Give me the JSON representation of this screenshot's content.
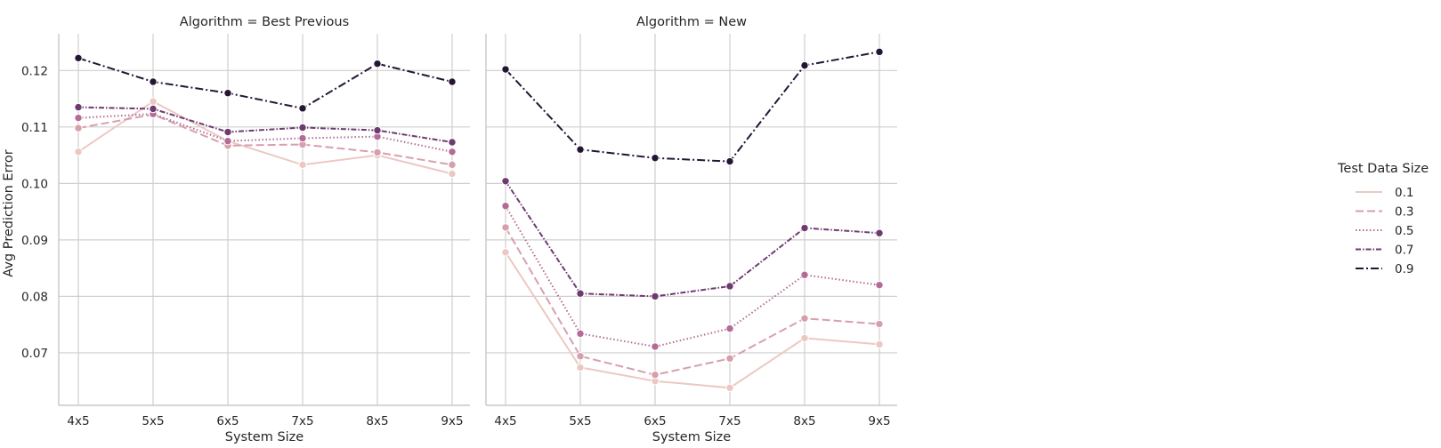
{
  "figure": {
    "ylabel": "Avg Prediction Error",
    "xlabel": "System Size",
    "legend": {
      "title": "Test Data Size",
      "placement": "right"
    }
  },
  "chart_data": {
    "type": "line",
    "categories": [
      "4x5",
      "5x5",
      "6x5",
      "7x5",
      "8x5",
      "9x5"
    ],
    "ylim": [
      0.0607,
      0.1265
    ],
    "yticks": [
      0.07,
      0.08,
      0.09,
      0.1,
      0.11,
      0.12
    ],
    "ytick_labels": [
      "0.07",
      "0.08",
      "0.09",
      "0.10",
      "0.11",
      "0.12"
    ],
    "grid": true,
    "shared_y": true,
    "series_styles": [
      {
        "name": "0.1",
        "color": "#ecc8c3",
        "dash": "none"
      },
      {
        "name": "0.3",
        "color": "#d79fac",
        "dash": "9,4"
      },
      {
        "name": "0.5",
        "color": "#b46b96",
        "dash": "1.5,2.5"
      },
      {
        "name": "0.7",
        "color": "#6e3b70",
        "dash": "6,2,1.5,2"
      },
      {
        "name": "0.9",
        "color": "#241633",
        "dash": "9,3,2,3"
      }
    ],
    "panels": [
      {
        "title": "Algorithm = Best Previous",
        "xlabel": "System Size",
        "series": [
          {
            "name": "0.1",
            "values": [
              0.1056,
              0.1145,
              0.1075,
              0.1033,
              0.105,
              0.1017
            ]
          },
          {
            "name": "0.3",
            "values": [
              0.1098,
              0.1122,
              0.1067,
              0.1069,
              0.1055,
              0.1033
            ]
          },
          {
            "name": "0.5",
            "values": [
              0.1116,
              0.1123,
              0.1075,
              0.108,
              0.1083,
              0.1056
            ]
          },
          {
            "name": "0.7",
            "values": [
              0.1135,
              0.1132,
              0.1091,
              0.1099,
              0.1094,
              0.1073
            ]
          },
          {
            "name": "0.9",
            "values": [
              0.1222,
              0.118,
              0.116,
              0.1133,
              0.1212,
              0.118
            ]
          }
        ]
      },
      {
        "title": "Algorithm = New",
        "xlabel": "System Size",
        "series": [
          {
            "name": "0.1",
            "values": [
              0.0878,
              0.0674,
              0.065,
              0.0638,
              0.0726,
              0.0715
            ]
          },
          {
            "name": "0.3",
            "values": [
              0.0922,
              0.0694,
              0.0661,
              0.069,
              0.0761,
              0.0751
            ]
          },
          {
            "name": "0.5",
            "values": [
              0.096,
              0.0734,
              0.0711,
              0.0743,
              0.0838,
              0.082
            ]
          },
          {
            "name": "0.7",
            "values": [
              0.1004,
              0.0805,
              0.08,
              0.0818,
              0.0921,
              0.0912
            ]
          },
          {
            "name": "0.9",
            "values": [
              0.1202,
              0.106,
              0.1045,
              0.1039,
              0.1209,
              0.1233
            ]
          }
        ]
      }
    ]
  }
}
